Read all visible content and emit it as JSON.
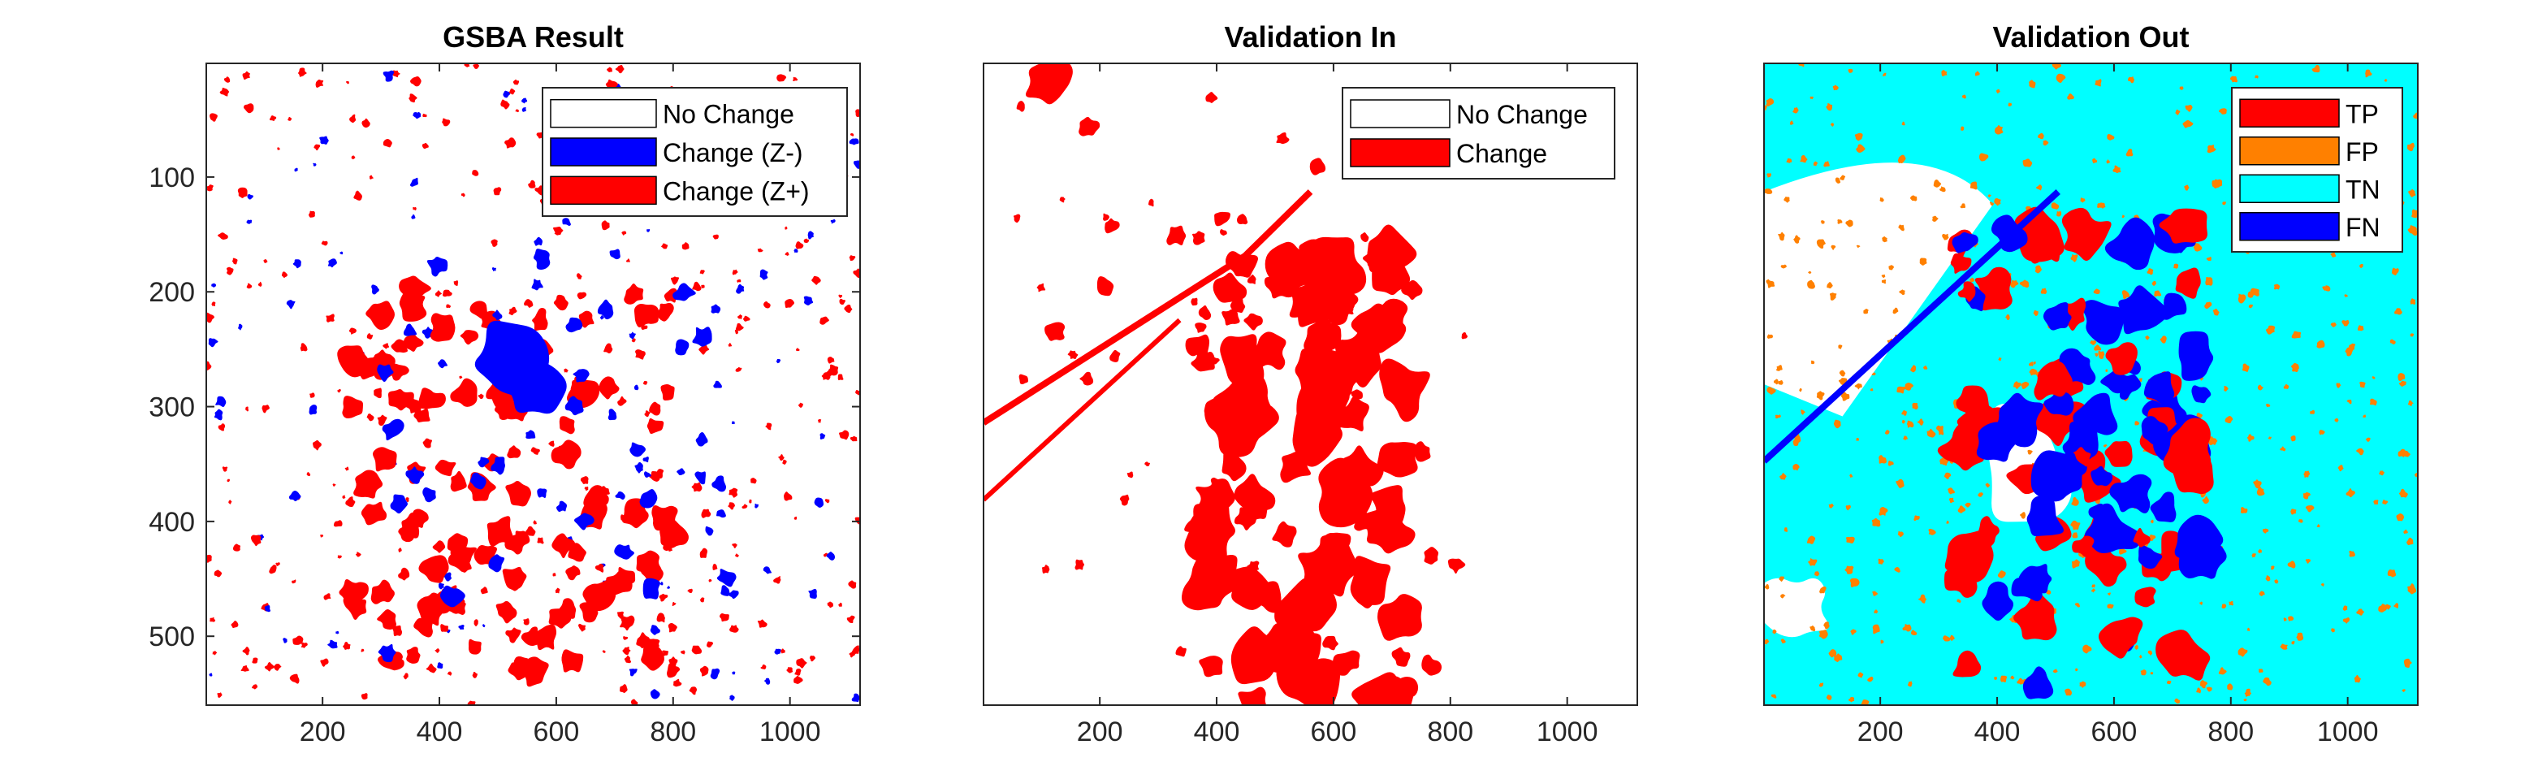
{
  "figure": {
    "background": "#ffffff"
  },
  "chart_data": [
    {
      "type": "heatmap",
      "title": "GSBA Result",
      "xlabel": "",
      "ylabel": "",
      "xlim": [
        1,
        1120
      ],
      "ylim": [
        1,
        560
      ],
      "y_reversed": true,
      "x_ticks": [
        200,
        400,
        600,
        800,
        1000
      ],
      "y_ticks": [
        100,
        200,
        300,
        400,
        500
      ],
      "show_y_ticks": true,
      "background_class": "No Change",
      "legend_position": "top-right",
      "legend": [
        {
          "label": "No Change",
          "color": "#ffffff"
        },
        {
          "label": "Change (Z-)",
          "color": "#0000ff"
        },
        {
          "label": "Change (Z+)",
          "color": "#ff0000"
        }
      ]
    },
    {
      "type": "heatmap",
      "title": "Validation In",
      "xlabel": "",
      "ylabel": "",
      "xlim": [
        1,
        1120
      ],
      "ylim": [
        1,
        560
      ],
      "y_reversed": true,
      "x_ticks": [
        200,
        400,
        600,
        800,
        1000
      ],
      "y_ticks": [],
      "show_y_ticks": false,
      "background_class": "No Change",
      "legend_position": "top-right",
      "legend": [
        {
          "label": "No Change",
          "color": "#ffffff"
        },
        {
          "label": "Change",
          "color": "#ff0000"
        }
      ]
    },
    {
      "type": "heatmap",
      "title": "Validation Out",
      "xlabel": "",
      "ylabel": "",
      "xlim": [
        1,
        1120
      ],
      "ylim": [
        1,
        560
      ],
      "y_reversed": true,
      "x_ticks": [
        200,
        400,
        600,
        800,
        1000
      ],
      "y_ticks": [],
      "show_y_ticks": false,
      "background_class": "TN",
      "legend_position": "top-right",
      "legend": [
        {
          "label": "TP",
          "color": "#ff0000"
        },
        {
          "label": "FP",
          "color": "#ff8000"
        },
        {
          "label": "TN",
          "color": "#00ffff"
        },
        {
          "label": "FN",
          "color": "#0000ff"
        }
      ]
    }
  ]
}
